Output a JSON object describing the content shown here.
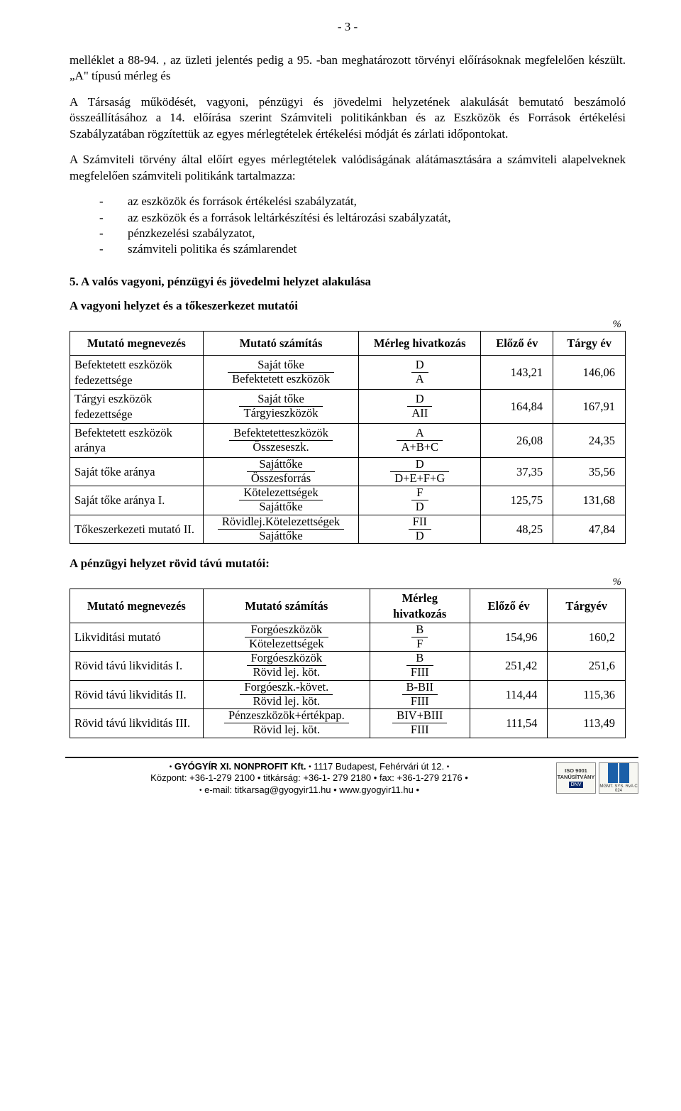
{
  "page_number_label": "- 3 -",
  "para1": "melléklet a 88-94. , az üzleti jelentés pedig a 95. -ban meghatározott törvényi előírásoknak megfelelően készült. „A\" típusú mérleg és",
  "para2": "A Társaság működését, vagyoni, pénzügyi és jövedelmi helyzetének alakulását bemutató beszámoló összeállításához a 14.  előírása szerint Számviteli politikánkban és az Eszközök és Források értékelési Szabályzatában rögzítettük az egyes mérlegtételek értékelési módját és zárlati időpontokat.",
  "para3": "A Számviteli törvény által előírt egyes mérlegtételek valódiságának alátámasztására a számviteli alapelveknek megfelelően számviteli politikánk tartalmazza:",
  "list_items": [
    "az eszközök és források értékelési szabályzatát,",
    "az eszközök és a források leltárkészítési és leltározási szabályzatát,",
    "pénzkezelési szabályzatot,",
    "számviteli politika és számlarendet"
  ],
  "h5": "5. A valós vagyoni, pénzügyi és jövedelmi helyzet alakulása",
  "h6a": "A vagyoni helyzet és a tőkeszerkezet mutatói",
  "percent": "%",
  "table1": {
    "col_widths": [
      "24%",
      "28%",
      "22%",
      "13%",
      "13%"
    ],
    "headers": [
      "Mutató megnevezés",
      "Mutató számítás",
      "Mérleg hivatkozás",
      "Előző év",
      "Tárgy év"
    ],
    "rows": [
      {
        "name": "Befektetett eszközök fedezettsége",
        "numtr": "Saját tőke",
        "dentr": "Befektetett eszközök",
        "rnum": "D",
        "rden": "A",
        "prev": "143,21",
        "curr": "146,06"
      },
      {
        "name": "Tárgyi eszközök fedezettsége",
        "numtr": "Saját tőke",
        "dentr": "Tárgyieszközök",
        "rnum": "D",
        "rden": "AII",
        "prev": "164,84",
        "curr": "167,91"
      },
      {
        "name": "Befektetett eszközök aránya",
        "numtr": "Befektetetteszközök",
        "dentr": "Összeseszk.",
        "rnum": "A",
        "rden": "A+B+C",
        "prev": "26,08",
        "curr": "24,35"
      },
      {
        "name": "Saját tőke aránya",
        "numtr": "Sajáttőke",
        "dentr": "Összesforrás",
        "rnum": "D",
        "rden": "D+E+F+G",
        "prev": "37,35",
        "curr": "35,56"
      },
      {
        "name": "Saját tőke aránya I.",
        "numtr": "Kötelezettségek",
        "dentr": "Sajáttőke",
        "rnum": "F",
        "rden": "D",
        "prev": "125,75",
        "curr": "131,68"
      },
      {
        "name": "Tőkeszerkezeti mutató II.",
        "numtr": "Rövidlej.Kötelezettségek",
        "dentr": "Sajáttőke",
        "rnum": "FII",
        "rden": "D",
        "prev": "48,25",
        "curr": "47,84"
      }
    ]
  },
  "h6b": "A pénzügyi helyzet rövid távú mutatói:",
  "table2": {
    "col_widths": [
      "24%",
      "30%",
      "18%",
      "14%",
      "14%"
    ],
    "headers": [
      "Mutató megnevezés",
      "Mutató számítás",
      "Mérleg hivatkozás",
      "Előző év",
      "Tárgyév"
    ],
    "rows": [
      {
        "name": "Likviditási mutató",
        "numtr": "Forgóeszközök",
        "dentr": "Kötelezettségek",
        "rnum": "B",
        "rden": "F",
        "prev": "154,96",
        "curr": "160,2"
      },
      {
        "name": "Rövid távú likviditás I.",
        "numtr": "Forgóeszközök",
        "dentr": "Rövid lej. köt.",
        "rnum": "B",
        "rden": "FIII",
        "prev": "251,42",
        "curr": "251,6"
      },
      {
        "name": "Rövid távú likviditás II.",
        "numtr": "Forgóeszk.-követ.",
        "dentr": "Rövid lej. köt.",
        "rnum": "B-BII",
        "rden": "FIII",
        "prev": "114,44",
        "curr": "115,36"
      },
      {
        "name": "Rövid távú likviditás III.",
        "numtr": "Pénzeszközök+értékpap.",
        "dentr": "Rövid lej. köt.",
        "rnum": "BIV+BIII",
        "rden": "FIII",
        "prev": "111,54",
        "curr": "113,49"
      }
    ]
  },
  "footer": {
    "line1_pre": "GYÓGYÍR XI. NONPROFIT Kft.",
    "line1_post": "1117 Budapest, Fehérvári út 12.",
    "line2": "Központ: +36-1-279 2100 • titkárság: +36-1- 279 2180 • fax: +36-1-279 2176 •",
    "line3": "e-mail: titkarsag@gyogyir11.hu • www.gyogyir11.hu •",
    "badge_iso": "ISO 9001 TANÚSÍTVÁNY",
    "badge_dnv": "DNV",
    "badge2_line": "MGMT. SYS. RvA C 024"
  }
}
